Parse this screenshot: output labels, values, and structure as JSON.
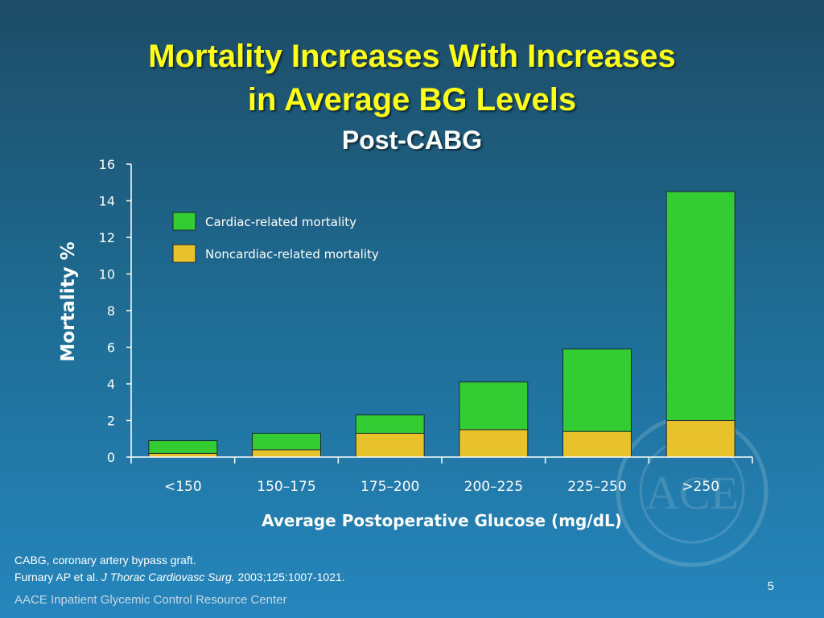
{
  "slide": {
    "title_line1": "Mortality Increases With Increases",
    "title_line2": "in Average BG Levels",
    "subtitle": "Post-CABG",
    "footnote_line1": "CABG, coronary artery bypass graft.",
    "footnote_authors": "Furnary AP et al. ",
    "footnote_journal": "J Thorac Cardiovasc Surg.",
    "footnote_citation": " 2003;125:1007-1021.",
    "page_number": "5",
    "footer": "AACE Inpatient Glycemic Control Resource Center",
    "watermark_text": "ACE"
  },
  "colors": {
    "title": "#ffff1a",
    "cardiac": "#33cc33",
    "noncardiac": "#e8c22a"
  },
  "chart_data": {
    "type": "bar",
    "stacked": true,
    "categories": [
      "<150",
      "150–175",
      "175–200",
      "200–225",
      "225–250",
      ">250"
    ],
    "series": [
      {
        "name": "Noncardiac-related mortality",
        "color": "#e8c22a",
        "values": [
          0.2,
          0.4,
          1.3,
          1.5,
          1.4,
          2.0
        ]
      },
      {
        "name": "Cardiac-related mortality",
        "color": "#33cc33",
        "values": [
          0.7,
          0.9,
          1.0,
          2.6,
          4.5,
          12.5
        ]
      }
    ],
    "xlabel": "Average Postoperative Glucose (mg/dL)",
    "ylabel": "Mortality %",
    "ylim": [
      0,
      16
    ],
    "yticks": [
      0,
      2,
      4,
      6,
      8,
      10,
      12,
      14,
      16
    ],
    "legend": {
      "placement": "top-left",
      "entries": [
        "Cardiac-related mortality",
        "Noncardiac-related mortality"
      ]
    },
    "grid": false
  }
}
